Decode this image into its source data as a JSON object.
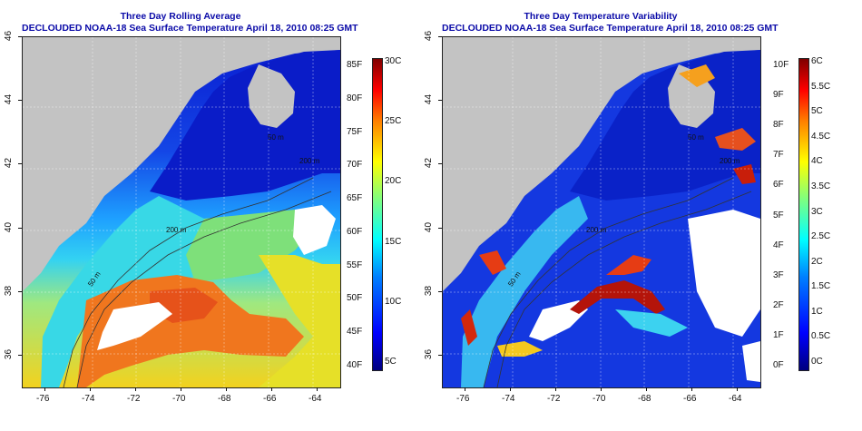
{
  "left_panel": {
    "title": "Three Day Rolling Average",
    "subtitle": "DECLOUDED NOAA-18 Sea Surface Temperature April 18, 2010 08:25 GMT",
    "x_ticks": [
      "-76",
      "-74",
      "-72",
      "-70",
      "-68",
      "-66",
      "-64"
    ],
    "y_ticks": [
      "36",
      "38",
      "40",
      "42",
      "44",
      "46"
    ],
    "contour_labels": [
      "200 m",
      "50 m",
      "200 m",
      "50 m"
    ],
    "colorbar": {
      "left_labels": [
        "85F",
        "80F",
        "75F",
        "70F",
        "65F",
        "60F",
        "55F",
        "50F",
        "45F",
        "40F"
      ],
      "right_labels": [
        "30C",
        "25C",
        "20C",
        "15C",
        "10C",
        "5C"
      ]
    }
  },
  "right_panel": {
    "title": "Three Day Temperature Variability",
    "subtitle": "DECLOUDED NOAA-18 Sea Surface Temperature April 18, 2010 08:25 GMT",
    "x_ticks": [
      "-76",
      "-74",
      "-72",
      "-70",
      "-68",
      "-66",
      "-64"
    ],
    "y_ticks": [
      "36",
      "38",
      "40",
      "42",
      "44",
      "46"
    ],
    "contour_labels": [
      "200 m",
      "50 m",
      "200 m",
      "50 m"
    ],
    "colorbar": {
      "left_labels": [
        "10F",
        "9F",
        "8F",
        "7F",
        "6F",
        "5F",
        "4F",
        "3F",
        "2F",
        "1F",
        "0F"
      ],
      "right_labels": [
        "6C",
        "5.5C",
        "5C",
        "4.5C",
        "4C",
        "3.5C",
        "3C",
        "2.5C",
        "2C",
        "1.5C",
        "1C",
        "0.5C",
        "0C"
      ]
    }
  },
  "colors": {
    "land": "#c3c3c3",
    "title": "#0a0aa8",
    "jet_low": "#00007f",
    "jet_high": "#7f0000"
  }
}
